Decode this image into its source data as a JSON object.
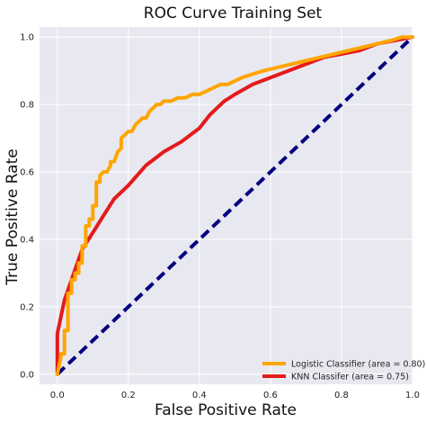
{
  "chart_data": {
    "type": "line",
    "title": "ROC Curve Training Set",
    "xlabel": "False Positive Rate",
    "ylabel": "True Positive Rate",
    "xlim": [
      -0.05,
      1.0
    ],
    "ylim": [
      -0.03,
      1.03
    ],
    "xticks": [
      "0.0",
      "0.2",
      "0.4",
      "0.6",
      "0.8",
      "1.0"
    ],
    "yticks": [
      "0.0",
      "0.2",
      "0.4",
      "0.6",
      "0.8",
      "1.0"
    ],
    "grid": true,
    "legend_position": "lower-right",
    "background_color": "#e8e8f0",
    "series": [
      {
        "name": "Logistic Classifier (area = 0.80)",
        "color": "#ffa500",
        "x": [
          0.0,
          0.01,
          0.01,
          0.02,
          0.02,
          0.03,
          0.03,
          0.04,
          0.04,
          0.05,
          0.05,
          0.06,
          0.06,
          0.07,
          0.07,
          0.08,
          0.08,
          0.09,
          0.09,
          0.1,
          0.1,
          0.11,
          0.11,
          0.12,
          0.12,
          0.13,
          0.14,
          0.15,
          0.15,
          0.16,
          0.17,
          0.18,
          0.18,
          0.19,
          0.2,
          0.21,
          0.22,
          0.23,
          0.24,
          0.25,
          0.26,
          0.27,
          0.28,
          0.29,
          0.3,
          0.32,
          0.34,
          0.36,
          0.38,
          0.4,
          0.42,
          0.44,
          0.46,
          0.48,
          0.5,
          0.52,
          0.55,
          0.58,
          0.62,
          0.66,
          0.7,
          0.74,
          0.78,
          0.82,
          0.86,
          0.9,
          0.94,
          0.97,
          1.0
        ],
        "y": [
          0.0,
          0.05,
          0.06,
          0.06,
          0.13,
          0.13,
          0.24,
          0.24,
          0.28,
          0.28,
          0.3,
          0.3,
          0.33,
          0.33,
          0.38,
          0.38,
          0.44,
          0.44,
          0.46,
          0.46,
          0.5,
          0.5,
          0.57,
          0.57,
          0.59,
          0.6,
          0.6,
          0.62,
          0.63,
          0.63,
          0.66,
          0.67,
          0.7,
          0.71,
          0.72,
          0.72,
          0.74,
          0.75,
          0.76,
          0.76,
          0.78,
          0.79,
          0.8,
          0.8,
          0.81,
          0.81,
          0.82,
          0.82,
          0.83,
          0.83,
          0.84,
          0.85,
          0.86,
          0.86,
          0.87,
          0.88,
          0.89,
          0.9,
          0.91,
          0.92,
          0.93,
          0.94,
          0.95,
          0.96,
          0.97,
          0.98,
          0.99,
          1.0,
          1.0
        ]
      },
      {
        "name": "KNN Classifer (area = 0.75)",
        "color": "#e41a1c",
        "x": [
          0.0,
          0.0,
          0.02,
          0.05,
          0.07,
          0.1,
          0.13,
          0.16,
          0.2,
          0.25,
          0.3,
          0.35,
          0.4,
          0.43,
          0.47,
          0.5,
          0.55,
          0.6,
          0.65,
          0.7,
          0.75,
          0.8,
          0.85,
          0.9,
          0.95,
          1.0
        ],
        "y": [
          0.0,
          0.12,
          0.22,
          0.31,
          0.37,
          0.42,
          0.47,
          0.52,
          0.56,
          0.62,
          0.66,
          0.69,
          0.73,
          0.77,
          0.81,
          0.83,
          0.86,
          0.88,
          0.9,
          0.92,
          0.94,
          0.95,
          0.96,
          0.98,
          0.99,
          1.0
        ]
      },
      {
        "name": "",
        "color": "#000080",
        "dashed": true,
        "x": [
          0.0,
          1.0
        ],
        "y": [
          0.0,
          1.0
        ]
      }
    ]
  }
}
